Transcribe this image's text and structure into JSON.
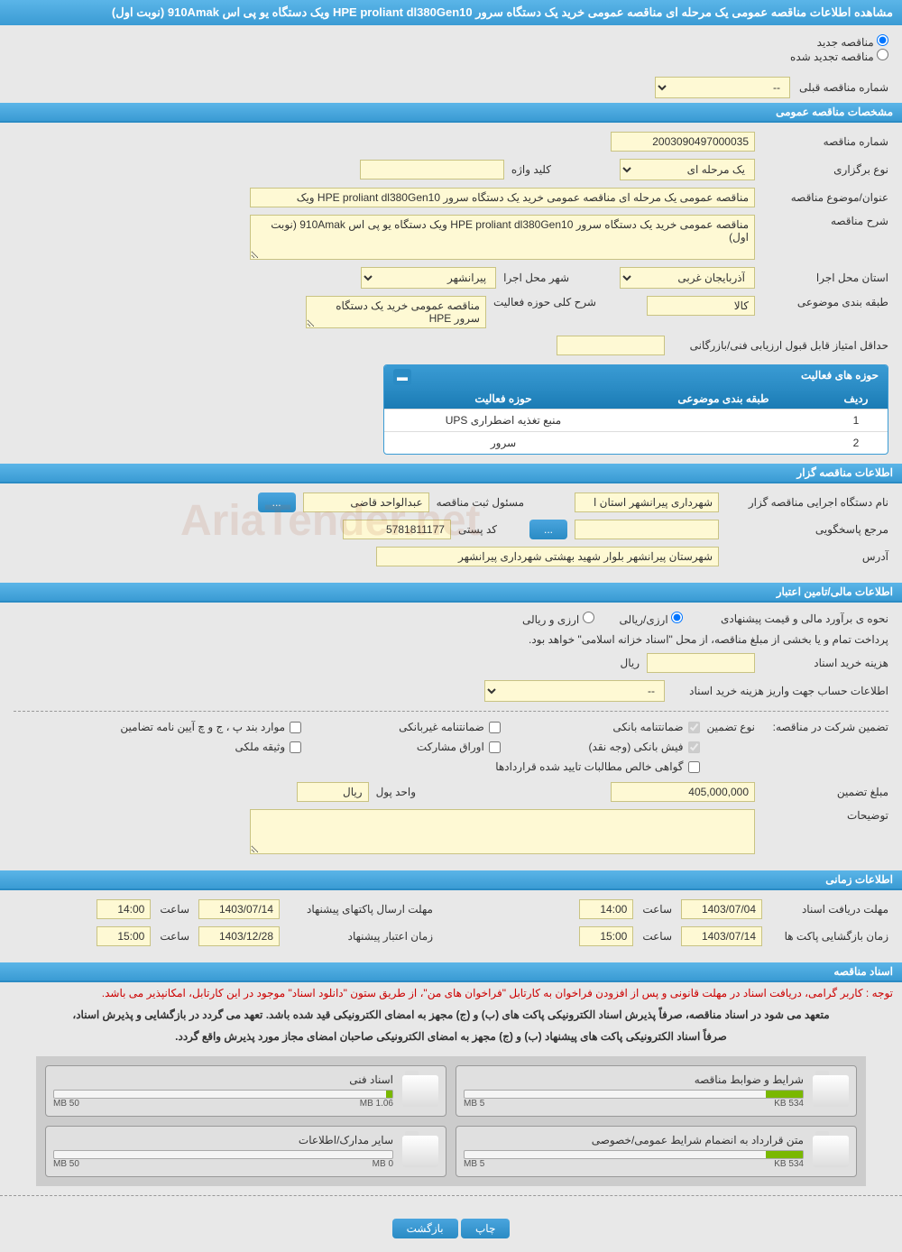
{
  "header": {
    "title": "مشاهده اطلاعات مناقصه عمومی یک مرحله ای مناقصه عمومی خرید یک دستگاه سرور HPE proliant dl380Gen10 ویک دستگاه یو پی اس 910Amak (نوبت اول)"
  },
  "radios": {
    "new_tender": "مناقصه جدید",
    "renewed_tender": "مناقصه تجدید شده"
  },
  "prev_tender": {
    "label": "شماره مناقصه قبلی",
    "value": "--"
  },
  "sections": {
    "general": "مشخصات مناقصه عمومی",
    "organizer": "اطلاعات مناقصه گزار",
    "financial": "اطلاعات مالی/تامین اعتبار",
    "timing": "اطلاعات زمانی",
    "documents": "اسناد مناقصه"
  },
  "general": {
    "tender_no_label": "شماره مناقصه",
    "tender_no": "2003090497000035",
    "type_label": "نوع برگزاری",
    "type_value": "یک مرحله ای",
    "keyword_label": "کلید واژه",
    "keyword_value": "",
    "title_label": "عنوان/موضوع مناقصه",
    "title_value": "مناقصه عمومی یک مرحله ای مناقصه عمومی خرید یک دستگاه سرور HPE proliant dl380Gen10 ویک",
    "desc_label": "شرح مناقصه",
    "desc_value": "مناقصه عمومی خرید یک دستگاه سرور HPE proliant dl380Gen10 ویک دستگاه یو پی اس 910Amak (نوبت اول)",
    "province_label": "استان محل اجرا",
    "province_value": "آذربایجان غربی",
    "city_label": "شهر محل اجرا",
    "city_value": "پیرانشهر",
    "category_label": "طبقه بندی موضوعی",
    "category_value": "کالا",
    "scope_label": "شرح کلی حوزه فعالیت",
    "scope_value": "مناقصه عمومی خرید یک دستگاه سرور HPE",
    "min_score_label": "حداقل امتیاز قابل قبول ارزیابی فنی/بازرگانی",
    "min_score_value": ""
  },
  "activity_table": {
    "title": "حوزه های فعالیت",
    "col_idx": "ردیف",
    "col_cat": "طبقه بندی موضوعی",
    "col_act": "حوزه فعالیت",
    "rows": [
      {
        "idx": "1",
        "cat": "",
        "act": "منبع تغذیه اضطراری UPS"
      },
      {
        "idx": "2",
        "cat": "",
        "act": "سرور"
      }
    ]
  },
  "organizer": {
    "org_label": "نام دستگاه اجرایی مناقصه گزار",
    "org_value": "شهرداری پیرانشهر استان ا",
    "resp_label": "مسئول ثبت مناقصه",
    "resp_value": "عبدالواحد قاضی",
    "ref_label": "مرجع پاسخگویی",
    "ref_btn": "...",
    "post_label": "کد پستی",
    "post_value": "5781811177",
    "addr_label": "آدرس",
    "addr_value": "شهرستان پیرانشهر بلوار شهید بهشتی شهرداری پیرانشهر"
  },
  "financial": {
    "method_label": "نحوه ی برآورد مالی و قیمت پیشنهادی",
    "radio1": "ارزی/ریالی",
    "radio2": "ارزی و ریالی",
    "note": "پرداخت تمام و یا بخشی از مبلغ مناقصه، از محل \"اسناد خزانه اسلامی\" خواهد بود.",
    "cost_label": "هزینه خرید اسناد",
    "cost_value": "",
    "cost_unit": "ریال",
    "account_label": "اطلاعات حساب جهت واریز هزینه خرید اسناد",
    "account_value": "--",
    "guarantee_label": "تضمین شرکت در مناقصه:",
    "guarantee_type_label": "نوع تضمین",
    "checks": {
      "c1": "ضمانتنامه بانکی",
      "c2": "ضمانتنامه غیربانکی",
      "c3": "موارد بند پ ، ج و چ آیین نامه تضامین",
      "c4": "فیش بانکی (وجه نقد)",
      "c5": "اوراق مشارکت",
      "c6": "وثیقه ملکی",
      "c7": "گواهی خالص مطالبات تایید شده قراردادها"
    },
    "amount_label": "مبلغ تضمین",
    "amount_value": "405,000,000",
    "unit_label": "واحد پول",
    "unit_value": "ریال",
    "notes_label": "توضیحات"
  },
  "timing": {
    "doc_deadline_label": "مهلت دریافت اسناد",
    "doc_deadline_date": "1403/07/04",
    "doc_deadline_time": "14:00",
    "submit_deadline_label": "مهلت ارسال پاکتهای پیشنهاد",
    "submit_deadline_date": "1403/07/14",
    "submit_deadline_time": "14:00",
    "open_label": "زمان بازگشایی پاکت ها",
    "open_date": "1403/07/14",
    "open_time": "15:00",
    "validity_label": "زمان اعتبار پیشنهاد",
    "validity_date": "1403/12/28",
    "validity_time": "15:00",
    "time_label": "ساعت"
  },
  "documents": {
    "warning": "توجه : کاربر گرامی، دریافت اسناد در مهلت قانونی و پس از افزودن فراخوان به کارتابل \"فراخوان های من\"، از طریق ستون \"دانلود اسناد\" موجود در این کارتابل، امکانپذیر می باشد.",
    "bold1": "متعهد می شود در اسناد مناقصه، صرفاً پذیرش اسناد الکترونیکی پاکت های (ب) و (ج) مجهز به امضای الکترونیکی قید شده باشد. تعهد می گردد در بازگشایی و پذیرش اسناد،",
    "bold2": "صرفاً اسناد الکترونیکی پاکت های پیشنهاد (ب) و (ج) مجهز به امضای الکترونیکی صاحبان امضای مجاز مورد پذیرش واقع گردد.",
    "files": [
      {
        "name": "شرایط و ضوابط مناقصه",
        "used": "534 KB",
        "total": "5 MB",
        "pct": 11
      },
      {
        "name": "اسناد فنی",
        "used": "1.06 MB",
        "total": "50 MB",
        "pct": 2
      },
      {
        "name": "متن قرارداد به انضمام شرایط عمومی/خصوصی",
        "used": "534 KB",
        "total": "5 MB",
        "pct": 11
      },
      {
        "name": "سایر مدارک/اطلاعات",
        "used": "0 MB",
        "total": "50 MB",
        "pct": 0
      }
    ]
  },
  "buttons": {
    "print": "چاپ",
    "back": "بازگشت",
    "dots": "..."
  },
  "colors": {
    "header_bg": "#3a9bd4",
    "field_bg": "#fef9d4",
    "warning": "#cc0000"
  }
}
